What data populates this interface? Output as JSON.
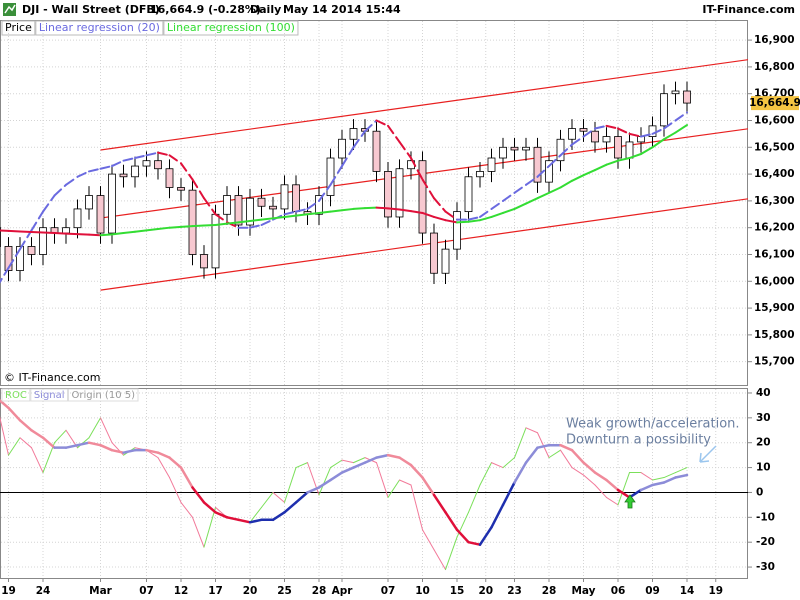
{
  "header": {
    "symbol": "DJI - Wall Street (DFB)",
    "quote": "16,664.9 (-0.28%)",
    "period": "Daily",
    "datetime": "May 14 2014 15:44",
    "brand": "IT-Finance.com"
  },
  "copyright": "© IT-Finance.com",
  "chart_data": [
    {
      "type": "candlestick",
      "last_price": 16664.9,
      "last_price_label": "16,664.9",
      "last_price_color": "#f5c542",
      "xlim": [
        0,
        65
      ],
      "ylim": [
        15613,
        16975
      ],
      "yticks": [
        {
          "value": 15700,
          "label": "15,700"
        },
        {
          "value": 15800,
          "label": "15,800"
        },
        {
          "value": 15900,
          "label": "15,900"
        },
        {
          "value": 16000,
          "label": "16,000"
        },
        {
          "value": 16100,
          "label": "16,100"
        },
        {
          "value": 16200,
          "label": "16,200"
        },
        {
          "value": 16300,
          "label": "16,300"
        },
        {
          "value": 16400,
          "label": "16,400"
        },
        {
          "value": 16500,
          "label": "16,500"
        },
        {
          "value": 16600,
          "label": "16,600"
        },
        {
          "value": 16700,
          "label": "16,700"
        },
        {
          "value": 16800,
          "label": "16,800"
        },
        {
          "value": 16900,
          "label": "16,900"
        }
      ],
      "grid": true,
      "series": [
        {
          "name": "Price",
          "color": "#000000",
          "up_color": "#ffffff",
          "down_color": "#f7c8d0",
          "open": [
            16200,
            16130,
            16040,
            16130,
            16100,
            16200,
            16180,
            16200,
            16270,
            16320,
            16180,
            16400,
            16390,
            16430,
            16450,
            16420,
            16350,
            16340,
            16100,
            16050,
            16250,
            16320,
            16210,
            16310,
            16280,
            16270,
            16360,
            16260,
            16250,
            16320,
            16460,
            16530,
            16570,
            16560,
            16410,
            16240,
            16420,
            16450,
            16180,
            16030,
            16120,
            16260,
            16390,
            16410,
            16460,
            16500,
            16490,
            16500,
            16370,
            16450,
            16530,
            16570,
            16560,
            16520,
            16540,
            16460,
            16520,
            16540,
            16580,
            16700,
            16710
          ],
          "high": [
            16235,
            16165,
            16165,
            16165,
            16235,
            16235,
            16235,
            16305,
            16355,
            16355,
            16435,
            16435,
            16465,
            16485,
            16485,
            16455,
            16385,
            16375,
            16135,
            16285,
            16355,
            16355,
            16345,
            16345,
            16315,
            16395,
            16395,
            16295,
            16355,
            16495,
            16565,
            16605,
            16605,
            16595,
            16445,
            16455,
            16485,
            16485,
            16215,
            16155,
            16295,
            16425,
            16445,
            16495,
            16535,
            16535,
            16535,
            16535,
            16485,
            16565,
            16605,
            16605,
            16595,
            16575,
            16575,
            16555,
            16575,
            16615,
            16735,
            16745,
            16745
          ],
          "low": [
            16090,
            16000,
            16000,
            16060,
            16060,
            16140,
            16140,
            16160,
            16230,
            16140,
            16140,
            16350,
            16350,
            16390,
            16380,
            16310,
            16300,
            16060,
            16010,
            16010,
            16210,
            16170,
            16170,
            16240,
            16230,
            16230,
            16220,
            16210,
            16210,
            16280,
            16420,
            16490,
            16520,
            16370,
            16200,
            16200,
            16380,
            16140,
            15990,
            15990,
            16080,
            16220,
            16350,
            16370,
            16420,
            16450,
            16450,
            16330,
            16330,
            16410,
            16490,
            16520,
            16480,
            16480,
            16420,
            16420,
            16480,
            16500,
            16540,
            16660,
            16625
          ],
          "close": [
            16130,
            16040,
            16130,
            16100,
            16200,
            16180,
            16200,
            16270,
            16320,
            16180,
            16400,
            16390,
            16430,
            16450,
            16420,
            16350,
            16340,
            16100,
            16050,
            16250,
            16320,
            16210,
            16310,
            16280,
            16270,
            16360,
            16260,
            16250,
            16320,
            16460,
            16530,
            16570,
            16560,
            16410,
            16240,
            16420,
            16450,
            16180,
            16030,
            16120,
            16260,
            16390,
            16410,
            16460,
            16500,
            16490,
            16500,
            16370,
            16450,
            16530,
            16570,
            16560,
            16520,
            16540,
            16460,
            16520,
            16540,
            16580,
            16700,
            16710,
            16665
          ]
        },
        {
          "name": "Linear regression (20)",
          "color": "#6a6ae0",
          "down_color": "#e0103a",
          "dashed": true,
          "values": [
            15980,
            16050,
            16120,
            16190,
            16260,
            16320,
            16360,
            16390,
            16410,
            16420,
            16430,
            16450,
            16460,
            16470,
            16480,
            16470,
            16440,
            16380,
            16310,
            16250,
            16220,
            16200,
            16200,
            16210,
            16230,
            16250,
            16260,
            16270,
            16300,
            16360,
            16430,
            16500,
            16560,
            16600,
            16580,
            16520,
            16460,
            16380,
            16310,
            16260,
            16230,
            16230,
            16240,
            16270,
            16300,
            16330,
            16360,
            16390,
            16430,
            16470,
            16510,
            16540,
            16570,
            16580,
            16570,
            16550,
            16540,
            16550,
            16570,
            16600,
            16630
          ]
        },
        {
          "name": "Linear regression (100)",
          "color": "#33dd33",
          "down_color": "#e0103a",
          "dashed": false,
          "values": [
            16190,
            16188,
            16186,
            16184,
            16182,
            16180,
            16178,
            16176,
            16174,
            16172,
            16175,
            16180,
            16185,
            16190,
            16195,
            16200,
            16203,
            16206,
            16208,
            16210,
            16215,
            16220,
            16225,
            16230,
            16235,
            16240,
            16245,
            16250,
            16255,
            16260,
            16265,
            16270,
            16273,
            16275,
            16272,
            16268,
            16262,
            16255,
            16240,
            16228,
            16220,
            16222,
            16228,
            16240,
            16255,
            16270,
            16290,
            16310,
            16330,
            16350,
            16375,
            16396,
            16415,
            16435,
            16450,
            16460,
            16475,
            16500,
            16530,
            16555,
            16583
          ]
        }
      ],
      "regression_channel": [
        {
          "x": [
            9,
            67
          ],
          "values": [
            16490,
            16837
          ],
          "color": "#e82020"
        },
        {
          "x": [
            9,
            67
          ],
          "values": [
            16236,
            16579
          ],
          "color": "#e82020"
        },
        {
          "x": [
            9,
            67
          ],
          "values": [
            15967,
            16318
          ],
          "color": "#e82020"
        }
      ]
    },
    {
      "type": "line",
      "xlim": [
        0,
        65
      ],
      "xticks": [
        {
          "value": 1,
          "label": "19"
        },
        {
          "value": 4,
          "label": "24"
        },
        {
          "value": 9,
          "label": "Mar"
        },
        {
          "value": 13,
          "label": "07"
        },
        {
          "value": 16,
          "label": "12"
        },
        {
          "value": 19,
          "label": "17"
        },
        {
          "value": 22,
          "label": "20"
        },
        {
          "value": 25,
          "label": "25"
        },
        {
          "value": 28,
          "label": "28"
        },
        {
          "value": 30,
          "label": "Apr"
        },
        {
          "value": 34,
          "label": "07"
        },
        {
          "value": 37,
          "label": "10"
        },
        {
          "value": 40,
          "label": "15"
        },
        {
          "value": 42.5,
          "label": "20"
        },
        {
          "value": 45,
          "label": "23"
        },
        {
          "value": 48,
          "label": "28"
        },
        {
          "value": 51,
          "label": "May"
        },
        {
          "value": 54,
          "label": "06"
        },
        {
          "value": 57,
          "label": "09"
        },
        {
          "value": 60,
          "label": "14"
        },
        {
          "value": 62.5,
          "label": "19"
        }
      ],
      "ylim": [
        -34.4,
        42
      ],
      "yticks": [
        40,
        30,
        20,
        10,
        0,
        -10,
        -20,
        -30
      ],
      "grid": true,
      "origin": 0,
      "origin_label": "Origin (10 5)",
      "series": [
        {
          "name": "ROC",
          "color": "#7be05a",
          "down_color": "#f27a9a",
          "width": 1,
          "values": [
            35,
            15,
            22,
            18,
            8,
            20,
            25,
            18,
            22,
            30,
            20,
            15,
            18,
            17,
            14,
            6,
            -4,
            -10,
            -22,
            -6,
            -10,
            -11,
            -12,
            -6,
            0,
            -4,
            10,
            12,
            -1,
            10,
            13,
            12,
            14,
            12,
            -2,
            5,
            3,
            -15,
            -23,
            -31,
            -18,
            -8,
            3,
            12,
            10,
            14,
            26,
            24,
            14,
            17,
            10,
            7,
            3,
            -2,
            -5,
            8,
            8,
            5,
            6,
            8,
            10
          ]
        },
        {
          "name": "Signal",
          "color": "#8c8cd8",
          "down_color": "#f08a9a",
          "negative_color": "#1e2fae",
          "negative_down_color": "#e0103a",
          "width": 2.5,
          "values": [
            38,
            34,
            29,
            25,
            22,
            18,
            18,
            19,
            20,
            19,
            17,
            16,
            17,
            17,
            16,
            14,
            10,
            2,
            -4,
            -8,
            -10,
            -11,
            -12,
            -11,
            -11,
            -8,
            -4,
            0,
            2,
            5,
            8,
            10,
            12,
            14,
            15,
            14,
            11,
            6,
            -1,
            -8,
            -15,
            -20,
            -21,
            -14,
            -5,
            4,
            12,
            18,
            19,
            19,
            17,
            12,
            8,
            5,
            1,
            -2,
            1,
            3,
            4,
            6,
            7
          ]
        }
      ],
      "annotation": [
        "Weak growth/acceleration.",
        "Downturn a possibility"
      ]
    }
  ]
}
